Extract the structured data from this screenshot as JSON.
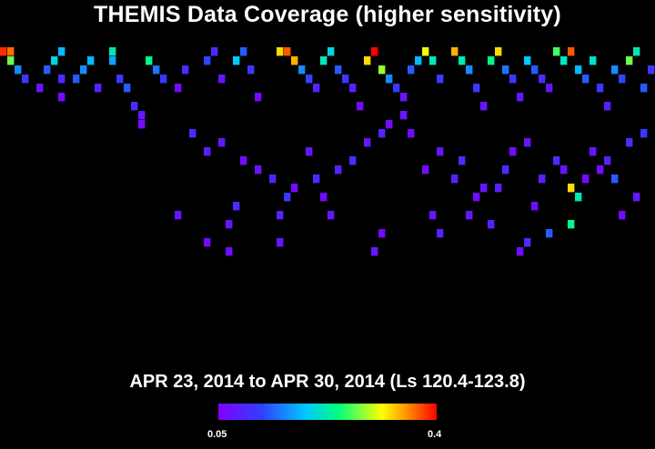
{
  "chart_data": {
    "type": "heatmap",
    "title": "THEMIS Data Coverage (higher sensitivity)",
    "subtitle": "APR 23, 2014 to APR 30, 2014 (Ls 120.4-123.8)",
    "colorbar": {
      "min_label": "0.05",
      "max_label": "0.4",
      "min": 0.05,
      "max": 0.4,
      "colormap": [
        "#8000ff",
        "#3040ff",
        "#00c8ff",
        "#00ff80",
        "#ffff00",
        "#ff8000",
        "#ff0000"
      ]
    },
    "grid": {
      "columns": 90,
      "rows": 29
    },
    "cells": [
      [
        0,
        0,
        0.38
      ],
      [
        1,
        0,
        0.35
      ],
      [
        1,
        1,
        0.25
      ],
      [
        2,
        2,
        0.14
      ],
      [
        3,
        3,
        0.1
      ],
      [
        5,
        4,
        0.07
      ],
      [
        6,
        2,
        0.12
      ],
      [
        7,
        1,
        0.18
      ],
      [
        8,
        0,
        0.16
      ],
      [
        8,
        3,
        0.09
      ],
      [
        8,
        5,
        0.06
      ],
      [
        10,
        3,
        0.12
      ],
      [
        11,
        2,
        0.14
      ],
      [
        12,
        1,
        0.16
      ],
      [
        13,
        4,
        0.08
      ],
      [
        15,
        0,
        0.2
      ],
      [
        15,
        1,
        0.15
      ],
      [
        16,
        3,
        0.1
      ],
      [
        17,
        4,
        0.12
      ],
      [
        18,
        6,
        0.09
      ],
      [
        19,
        7,
        0.07
      ],
      [
        20,
        1,
        0.22
      ],
      [
        21,
        2,
        0.13
      ],
      [
        22,
        3,
        0.1
      ],
      [
        24,
        4,
        0.06
      ],
      [
        25,
        2,
        0.09
      ],
      [
        28,
        1,
        0.11
      ],
      [
        29,
        0,
        0.09
      ],
      [
        30,
        3,
        0.07
      ],
      [
        32,
        1,
        0.17
      ],
      [
        33,
        0,
        0.12
      ],
      [
        34,
        2,
        0.1
      ],
      [
        35,
        5,
        0.06
      ],
      [
        38,
        0,
        0.3
      ],
      [
        39,
        0,
        0.36
      ],
      [
        40,
        1,
        0.32
      ],
      [
        41,
        2,
        0.14
      ],
      [
        42,
        3,
        0.11
      ],
      [
        43,
        4,
        0.08
      ],
      [
        44,
        1,
        0.2
      ],
      [
        45,
        0,
        0.18
      ],
      [
        46,
        2,
        0.12
      ],
      [
        47,
        3,
        0.1
      ],
      [
        48,
        4,
        0.08
      ],
      [
        49,
        6,
        0.06
      ],
      [
        50,
        1,
        0.3
      ],
      [
        51,
        0,
        0.4
      ],
      [
        52,
        2,
        0.26
      ],
      [
        53,
        3,
        0.14
      ],
      [
        54,
        4,
        0.1
      ],
      [
        55,
        5,
        0.07
      ],
      [
        56,
        2,
        0.12
      ],
      [
        57,
        1,
        0.16
      ],
      [
        58,
        0,
        0.28
      ],
      [
        59,
        1,
        0.2
      ],
      [
        60,
        3,
        0.1
      ],
      [
        62,
        0,
        0.32
      ],
      [
        63,
        1,
        0.2
      ],
      [
        64,
        2,
        0.14
      ],
      [
        65,
        4,
        0.1
      ],
      [
        66,
        6,
        0.07
      ],
      [
        67,
        1,
        0.22
      ],
      [
        68,
        0,
        0.3
      ],
      [
        69,
        2,
        0.13
      ],
      [
        70,
        3,
        0.1
      ],
      [
        71,
        5,
        0.07
      ],
      [
        72,
        1,
        0.17
      ],
      [
        73,
        2,
        0.12
      ],
      [
        74,
        3,
        0.09
      ],
      [
        75,
        4,
        0.07
      ],
      [
        76,
        0,
        0.24
      ],
      [
        77,
        1,
        0.2
      ],
      [
        78,
        0,
        0.36
      ],
      [
        79,
        2,
        0.16
      ],
      [
        80,
        3,
        0.12
      ],
      [
        81,
        1,
        0.19
      ],
      [
        82,
        4,
        0.1
      ],
      [
        83,
        6,
        0.08
      ],
      [
        84,
        2,
        0.14
      ],
      [
        85,
        3,
        0.11
      ],
      [
        86,
        1,
        0.25
      ],
      [
        87,
        0,
        0.2
      ],
      [
        88,
        4,
        0.12
      ],
      [
        89,
        2,
        0.1
      ],
      [
        19,
        8,
        0.06
      ],
      [
        26,
        9,
        0.09
      ],
      [
        28,
        11,
        0.08
      ],
      [
        30,
        10,
        0.07
      ],
      [
        33,
        12,
        0.06
      ],
      [
        35,
        13,
        0.07
      ],
      [
        37,
        14,
        0.08
      ],
      [
        40,
        15,
        0.06
      ],
      [
        42,
        11,
        0.07
      ],
      [
        44,
        16,
        0.06
      ],
      [
        46,
        13,
        0.08
      ],
      [
        48,
        12,
        0.09
      ],
      [
        50,
        10,
        0.07
      ],
      [
        52,
        9,
        0.08
      ],
      [
        53,
        8,
        0.06
      ],
      [
        55,
        7,
        0.07
      ],
      [
        56,
        9,
        0.06
      ],
      [
        58,
        13,
        0.06
      ],
      [
        60,
        11,
        0.07
      ],
      [
        62,
        14,
        0.08
      ],
      [
        63,
        12,
        0.09
      ],
      [
        65,
        16,
        0.06
      ],
      [
        66,
        15,
        0.07
      ],
      [
        68,
        15,
        0.08
      ],
      [
        69,
        13,
        0.09
      ],
      [
        70,
        11,
        0.06
      ],
      [
        72,
        10,
        0.07
      ],
      [
        73,
        17,
        0.06
      ],
      [
        74,
        14,
        0.08
      ],
      [
        76,
        12,
        0.09
      ],
      [
        77,
        13,
        0.07
      ],
      [
        78,
        15,
        0.3
      ],
      [
        79,
        16,
        0.2
      ],
      [
        80,
        14,
        0.06
      ],
      [
        81,
        11,
        0.07
      ],
      [
        82,
        13,
        0.06
      ],
      [
        83,
        12,
        0.08
      ],
      [
        84,
        14,
        0.12
      ],
      [
        85,
        18,
        0.06
      ],
      [
        86,
        10,
        0.09
      ],
      [
        87,
        16,
        0.07
      ],
      [
        88,
        9,
        0.1
      ],
      [
        32,
        17,
        0.09
      ],
      [
        31,
        19,
        0.07
      ],
      [
        38,
        18,
        0.08
      ],
      [
        24,
        18,
        0.07
      ],
      [
        39,
        16,
        0.1
      ],
      [
        43,
        14,
        0.09
      ],
      [
        45,
        18,
        0.07
      ],
      [
        28,
        21,
        0.06
      ],
      [
        31,
        22,
        0.06
      ],
      [
        38,
        21,
        0.07
      ],
      [
        60,
        20,
        0.08
      ],
      [
        64,
        18,
        0.07
      ],
      [
        67,
        19,
        0.08
      ],
      [
        72,
        21,
        0.09
      ],
      [
        75,
        20,
        0.12
      ],
      [
        78,
        19,
        0.22
      ],
      [
        71,
        22,
        0.06
      ],
      [
        59,
        18,
        0.07
      ],
      [
        52,
        20,
        0.06
      ],
      [
        51,
        22,
        0.07
      ]
    ]
  }
}
